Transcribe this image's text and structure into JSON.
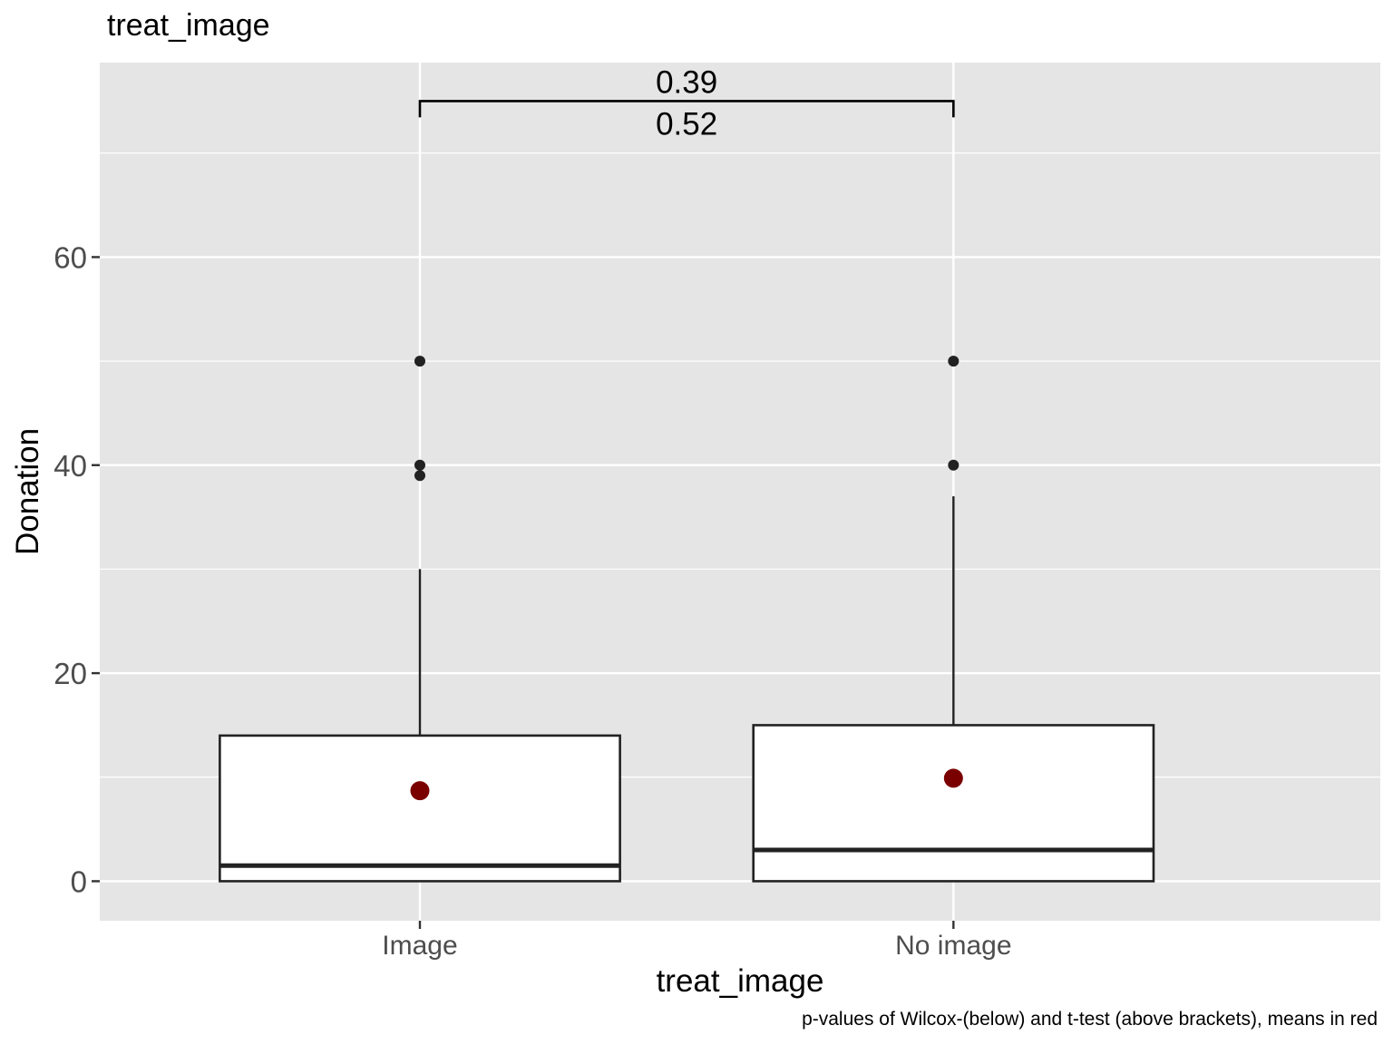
{
  "chart_data": {
    "type": "boxplot",
    "title": "treat_image",
    "xlabel": "treat_image",
    "ylabel": "Donation",
    "caption": "p-values of Wilcox-(below) and  t-test (above brackets), means in red",
    "categories": [
      "Image",
      "No image"
    ],
    "ylim": [
      -3.8,
      78.7
    ],
    "yticks": [
      0,
      20,
      40,
      60
    ],
    "yticks_labels": [
      "0",
      "20",
      "40",
      "60"
    ],
    "grid": true,
    "boxes": [
      {
        "category": "Image",
        "min": 0,
        "q1": 0,
        "median": 1.5,
        "q3": 14,
        "whisker_high": 30,
        "outliers": [
          39,
          40,
          50
        ],
        "mean": 8.7
      },
      {
        "category": "No image",
        "min": 0,
        "q1": 0,
        "median": 3,
        "q3": 15,
        "whisker_high": 37,
        "outliers": [
          40,
          50
        ],
        "mean": 9.9
      }
    ],
    "comparison": {
      "groups": [
        "Image",
        "No image"
      ],
      "bracket_y": 75,
      "ttest_p": "0.39",
      "wilcox_p": "0.52"
    },
    "colors": {
      "panel": "#e5e5e5",
      "grid": "#ffffff",
      "box_fill": "#ffffff",
      "box_stroke": "#222222",
      "outlier": "#222222",
      "mean": "#7a0000"
    }
  }
}
